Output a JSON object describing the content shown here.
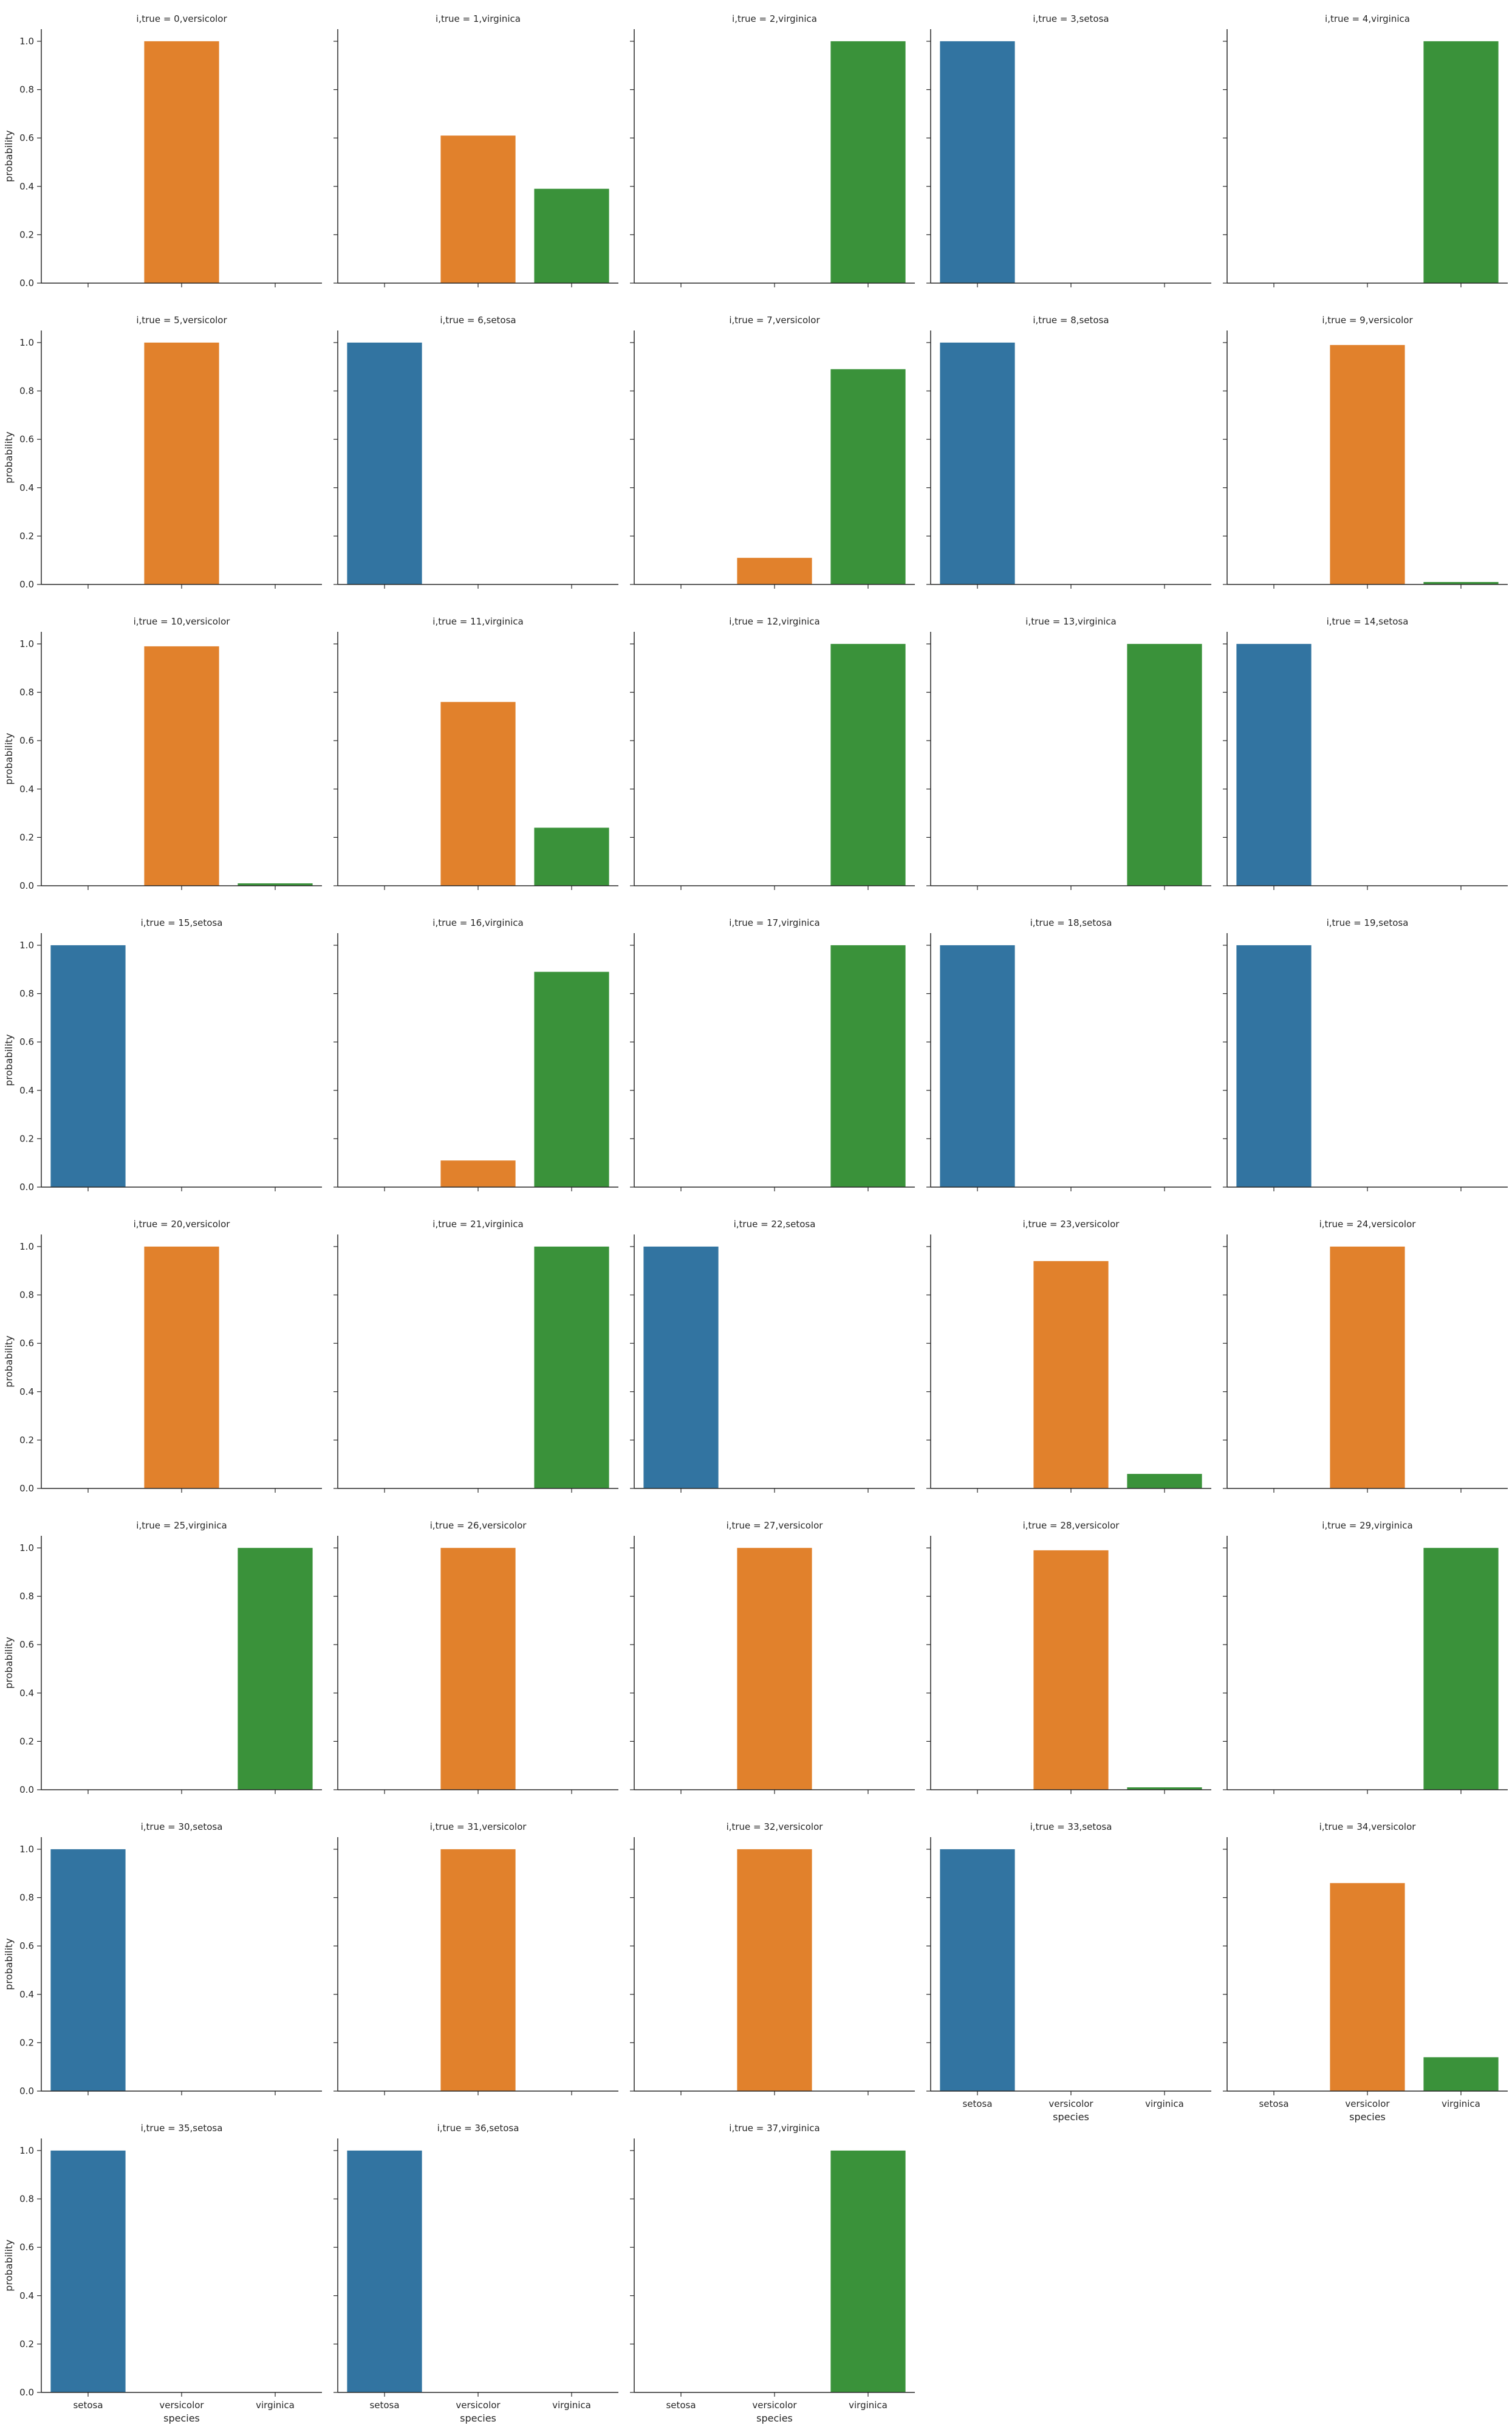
{
  "chart_data": {
    "type": "bar",
    "facet_layout": "5 columns, shared x and y axes",
    "categories": [
      "setosa",
      "versicolor",
      "virginica"
    ],
    "colors": {
      "setosa": "#3274a1",
      "versicolor": "#e1812c",
      "virginica": "#3a923a"
    },
    "xlabel": "species",
    "ylabel": "probability",
    "ylim": [
      0,
      1.05
    ],
    "yticks": [
      "0.0",
      "0.2",
      "0.4",
      "0.6",
      "0.8",
      "1.0"
    ],
    "grid": false,
    "legend": "none",
    "panels": [
      {
        "title": "i,true = 0,versicolor",
        "values": [
          0.0,
          1.0,
          0.0
        ]
      },
      {
        "title": "i,true = 1,virginica",
        "values": [
          0.0,
          0.61,
          0.39
        ]
      },
      {
        "title": "i,true = 2,virginica",
        "values": [
          0.0,
          0.0,
          1.0
        ]
      },
      {
        "title": "i,true = 3,setosa",
        "values": [
          1.0,
          0.0,
          0.0
        ]
      },
      {
        "title": "i,true = 4,virginica",
        "values": [
          0.0,
          0.0,
          1.0
        ]
      },
      {
        "title": "i,true = 5,versicolor",
        "values": [
          0.0,
          1.0,
          0.0
        ]
      },
      {
        "title": "i,true = 6,setosa",
        "values": [
          1.0,
          0.0,
          0.0
        ]
      },
      {
        "title": "i,true = 7,versicolor",
        "values": [
          0.0,
          0.11,
          0.89
        ]
      },
      {
        "title": "i,true = 8,setosa",
        "values": [
          1.0,
          0.0,
          0.0
        ]
      },
      {
        "title": "i,true = 9,versicolor",
        "values": [
          0.0,
          0.99,
          0.01
        ]
      },
      {
        "title": "i,true = 10,versicolor",
        "values": [
          0.0,
          0.99,
          0.01
        ]
      },
      {
        "title": "i,true = 11,virginica",
        "values": [
          0.0,
          0.76,
          0.24
        ]
      },
      {
        "title": "i,true = 12,virginica",
        "values": [
          0.0,
          0.0,
          1.0
        ]
      },
      {
        "title": "i,true = 13,virginica",
        "values": [
          0.0,
          0.0,
          1.0
        ]
      },
      {
        "title": "i,true = 14,setosa",
        "values": [
          1.0,
          0.0,
          0.0
        ]
      },
      {
        "title": "i,true = 15,setosa",
        "values": [
          1.0,
          0.0,
          0.0
        ]
      },
      {
        "title": "i,true = 16,virginica",
        "values": [
          0.0,
          0.11,
          0.89
        ]
      },
      {
        "title": "i,true = 17,virginica",
        "values": [
          0.0,
          0.0,
          1.0
        ]
      },
      {
        "title": "i,true = 18,setosa",
        "values": [
          1.0,
          0.0,
          0.0
        ]
      },
      {
        "title": "i,true = 19,setosa",
        "values": [
          1.0,
          0.0,
          0.0
        ]
      },
      {
        "title": "i,true = 20,versicolor",
        "values": [
          0.0,
          1.0,
          0.0
        ]
      },
      {
        "title": "i,true = 21,virginica",
        "values": [
          0.0,
          0.0,
          1.0
        ]
      },
      {
        "title": "i,true = 22,setosa",
        "values": [
          1.0,
          0.0,
          0.0
        ]
      },
      {
        "title": "i,true = 23,versicolor",
        "values": [
          0.0,
          0.94,
          0.06
        ]
      },
      {
        "title": "i,true = 24,versicolor",
        "values": [
          0.0,
          1.0,
          0.0
        ]
      },
      {
        "title": "i,true = 25,virginica",
        "values": [
          0.0,
          0.0,
          1.0
        ]
      },
      {
        "title": "i,true = 26,versicolor",
        "values": [
          0.0,
          1.0,
          0.0
        ]
      },
      {
        "title": "i,true = 27,versicolor",
        "values": [
          0.0,
          1.0,
          0.0
        ]
      },
      {
        "title": "i,true = 28,versicolor",
        "values": [
          0.0,
          0.99,
          0.01
        ]
      },
      {
        "title": "i,true = 29,virginica",
        "values": [
          0.0,
          0.0,
          1.0
        ]
      },
      {
        "title": "i,true = 30,setosa",
        "values": [
          1.0,
          0.0,
          0.0
        ]
      },
      {
        "title": "i,true = 31,versicolor",
        "values": [
          0.0,
          1.0,
          0.0
        ]
      },
      {
        "title": "i,true = 32,versicolor",
        "values": [
          0.0,
          1.0,
          0.0
        ]
      },
      {
        "title": "i,true = 33,setosa",
        "values": [
          1.0,
          0.0,
          0.0
        ]
      },
      {
        "title": "i,true = 34,versicolor",
        "values": [
          0.0,
          0.86,
          0.14
        ]
      },
      {
        "title": "i,true = 35,setosa",
        "values": [
          1.0,
          0.0,
          0.0
        ]
      },
      {
        "title": "i,true = 36,setosa",
        "values": [
          1.0,
          0.0,
          0.0
        ]
      },
      {
        "title": "i,true = 37,virginica",
        "values": [
          0.0,
          0.0,
          1.0
        ]
      }
    ]
  }
}
